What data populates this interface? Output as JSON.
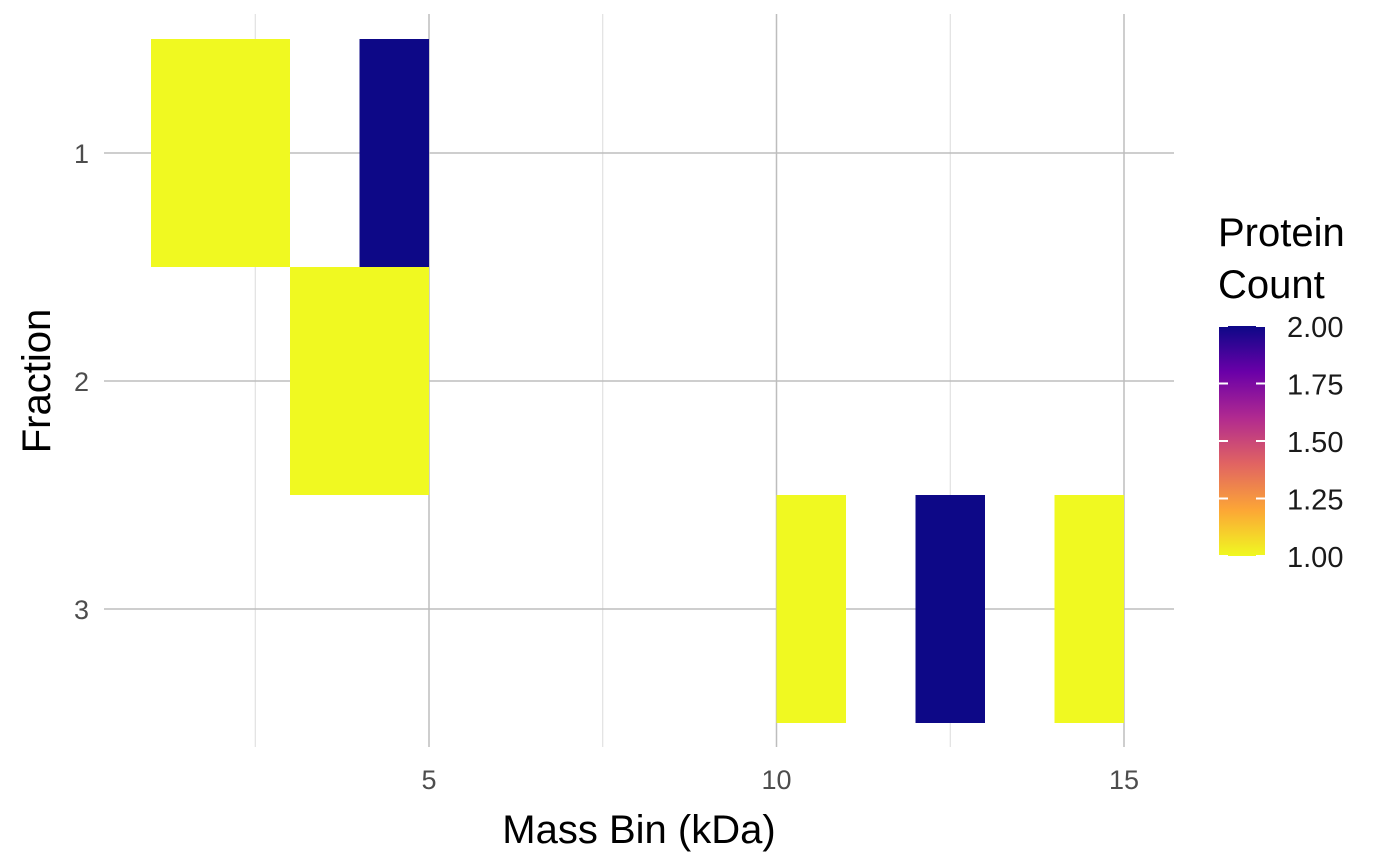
{
  "chart_data": {
    "type": "heatmap",
    "xlabel": "Mass Bin (kDa)",
    "ylabel": "Fraction",
    "x_ticks": [
      5,
      10,
      15
    ],
    "x_tick_labels": [
      "5",
      "10",
      "15"
    ],
    "y_categories": [
      "1",
      "2",
      "3"
    ],
    "grid": true,
    "legend": {
      "title_lines": [
        "Protein",
        "Count"
      ],
      "placement": "right",
      "min": 1.0,
      "max": 2.0,
      "ticks": [
        2.0,
        1.75,
        1.5,
        1.25,
        1.0
      ],
      "tick_labels": [
        "2.00",
        "1.75",
        "1.50",
        "1.25",
        "1.00"
      ],
      "colors": [
        "#f0f921",
        "#fca636",
        "#e16462",
        "#b12a90",
        "#6a00a8",
        "#0d0887"
      ]
    },
    "tiles": [
      {
        "fraction": "1",
        "x_start": 1,
        "x_end": 3,
        "count": 1
      },
      {
        "fraction": "1",
        "x_start": 4,
        "x_end": 5,
        "count": 2
      },
      {
        "fraction": "2",
        "x_start": 3,
        "x_end": 5,
        "count": 1
      },
      {
        "fraction": "3",
        "x_start": 10,
        "x_end": 11,
        "count": 1
      },
      {
        "fraction": "3",
        "x_start": 12,
        "x_end": 13,
        "count": 2
      },
      {
        "fraction": "3",
        "x_start": 14,
        "x_end": 15,
        "count": 1
      }
    ]
  }
}
